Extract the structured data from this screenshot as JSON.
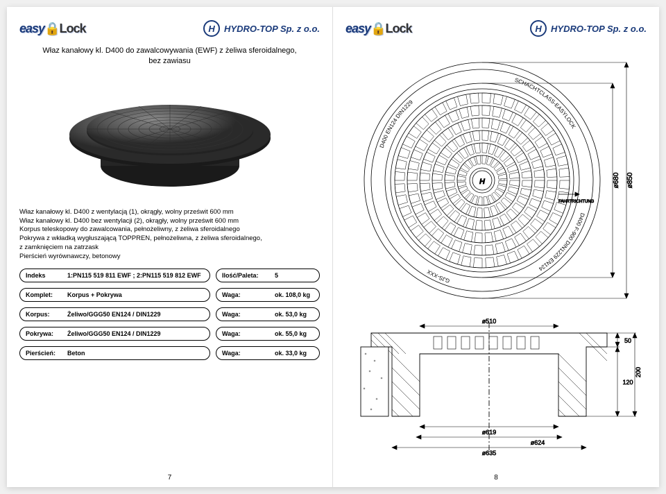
{
  "logos": {
    "easylock_text": "easy",
    "easylock_lock": "Lock",
    "hydro_icon": "H",
    "hydro_text": "HYDRO-TOP Sp. z o.o."
  },
  "left": {
    "title_line1": "Właz kanałowy kl. D400 do zawalcowywania (EWF) z żeliwa sferoidalnego,",
    "title_line2": "bez zawiasu",
    "desc_lines": [
      "Właz kanałowy kl. D400 z wentylacją (1), okrągły, wolny prześwit 600 mm",
      "Właz kanałowy kl. D400 bez wentylacji (2), okrągły, wolny prześwit 600 mm",
      "Korpus teleskopowy do zawalcowania, pełnożeliwny, z żeliwa sferoidalnego",
      "Pokrywa z wkładką wygłuszającą TOPPREN, pełnożeliwna, z żeliwa sferoidalnego,",
      "z zamknięciem na zatrzask",
      "Pierścień wyrównawczy, betonowy"
    ],
    "specs": [
      {
        "lab": "Indeks",
        "val": "1:PN115 519 811 EWF ; 2:PN115 519 812 EWF",
        "rlab": "Ilość/Paleta:",
        "rval": "5"
      },
      {
        "lab": "Komplet:",
        "val": "Korpus + Pokrywa",
        "rlab": "Waga:",
        "rval": "ok. 108,0 kg"
      },
      {
        "lab": "Korpus:",
        "val": "Żeliwo/GGG50 EN124 / DIN1229",
        "rlab": "Waga:",
        "rval": "ok. 53,0 kg"
      },
      {
        "lab": "Pokrywa:",
        "val": "Żeliwo/GGG50 EN124 / DIN1229",
        "rlab": "Waga:",
        "rval": "ok. 55,0 kg"
      },
      {
        "lab": "Pierścień:",
        "val": "Beton",
        "rlab": "Waga:",
        "rval": "ok. 33,0 kg"
      }
    ],
    "page_num": "7"
  },
  "right": {
    "page_num": "8",
    "top_view": {
      "outer_dia": "ø850",
      "inner_dia": "ø680",
      "labels_ring": [
        "D400 EN124 DIN1229",
        "SCHACHTCLASS-EASYLOCK",
        "D400 F-900 DIN1229 EN124",
        "GJS-XXX"
      ],
      "arrow_label": "FAHRTRICHTUNG"
    },
    "section_view": {
      "dims": {
        "d619": "ø619",
        "d624": "ø624",
        "d635": "ø635",
        "h50": "50",
        "h120": "120",
        "h200": "200",
        "d510": "ø510"
      }
    }
  }
}
